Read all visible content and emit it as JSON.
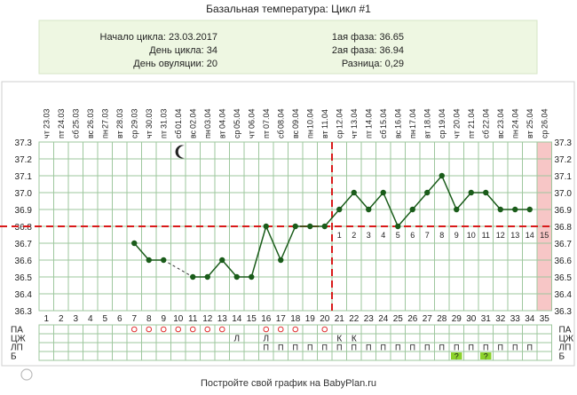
{
  "title": "Базальная температура: Цикл #1",
  "info": {
    "left": [
      "Начало цикла: 23.03.2017",
      "День цикла: 34",
      "День овуляции: 20"
    ],
    "right": [
      "1ая фаза: 36.65",
      "2ая фаза: 36.94",
      "Разница: 0,29"
    ]
  },
  "footer": "Постройте свой график на BabyPlan.ru",
  "chart_data": {
    "type": "line",
    "dates": [
      "23.03",
      "24.03",
      "25.03",
      "26.03",
      "27.03",
      "28.03",
      "29.03",
      "30.03",
      "31.03",
      "01.04",
      "02.04",
      "03.04",
      "04.04",
      "05.04",
      "06.04",
      "07.04",
      "08.04",
      "09.04",
      "10.04",
      "11.04",
      "12.04",
      "13.04",
      "14.04",
      "15.04",
      "16.04",
      "17.04",
      "18.04",
      "19.04",
      "20.04",
      "21.04",
      "22.04",
      "23.04",
      "24.04",
      "25.04",
      "26.04"
    ],
    "weekdays": [
      "чт",
      "пт",
      "сб",
      "вс",
      "пн",
      "вт",
      "ср",
      "чт",
      "пт",
      "сб",
      "вс",
      "пн",
      "вт",
      "ср",
      "чт",
      "пт",
      "сб",
      "вс",
      "пн",
      "вт",
      "ср",
      "чт",
      "пт",
      "сб",
      "вс",
      "пн",
      "вт",
      "ср",
      "чт",
      "пт",
      "сб",
      "вс",
      "пн",
      "вт",
      "ср"
    ],
    "cycle_days": [
      1,
      2,
      3,
      4,
      5,
      6,
      7,
      8,
      9,
      10,
      11,
      12,
      13,
      14,
      15,
      16,
      17,
      18,
      19,
      20,
      21,
      22,
      23,
      24,
      25,
      26,
      27,
      28,
      29,
      30,
      31,
      32,
      33,
      34,
      35
    ],
    "temperatures": [
      null,
      null,
      null,
      null,
      null,
      null,
      36.7,
      36.6,
      36.6,
      null,
      36.5,
      36.5,
      36.6,
      36.5,
      36.5,
      36.8,
      36.6,
      36.8,
      36.8,
      36.8,
      36.9,
      37.0,
      36.9,
      37.0,
      36.8,
      36.9,
      37.0,
      37.1,
      36.9,
      37.0,
      37.0,
      36.9,
      36.9,
      36.9,
      null
    ],
    "dashed_gap": [
      9,
      11
    ],
    "yticks": [
      "37.3",
      "37.2",
      "37.1",
      "37.0",
      "36.9",
      "36.8",
      "36.7",
      "36.6",
      "36.5",
      "36.4",
      "36.3"
    ],
    "ylim": [
      36.3,
      37.3
    ],
    "coverline": 36.8,
    "ovulation_day": 20,
    "luteal_labels": [
      "1",
      "2",
      "3",
      "4",
      "5",
      "6",
      "7",
      "8",
      "9",
      "10",
      "11",
      "12",
      "13",
      "14",
      "15"
    ],
    "today_day": 35,
    "moon_day": 10,
    "moon_icon": "crescent-moon-icon",
    "legend_rows": [
      "ПА",
      "ЦЖ",
      "ЛП",
      "Б"
    ],
    "pa_days": [
      7,
      8,
      9,
      10,
      11,
      12,
      13,
      16,
      17,
      18,
      20
    ],
    "cm": {
      "14": "Л",
      "16": "Л",
      "21": "К",
      "22": "К"
    },
    "lp_days": [
      16,
      17,
      18,
      19,
      20,
      21,
      22,
      23,
      24,
      25,
      26,
      27,
      28,
      29,
      30,
      31,
      32,
      33,
      34
    ],
    "lp_symbol": "П",
    "test_days": [
      29,
      31
    ],
    "test_symbol": "?",
    "colors": {
      "line": "#1a5c1a",
      "coverline": "#d91a1a",
      "today": "#f7c6c6",
      "grid": "#9ec79e",
      "header_bg": "#eef7e2",
      "test": "#8bd22b",
      "pa": "#e03030"
    }
  }
}
